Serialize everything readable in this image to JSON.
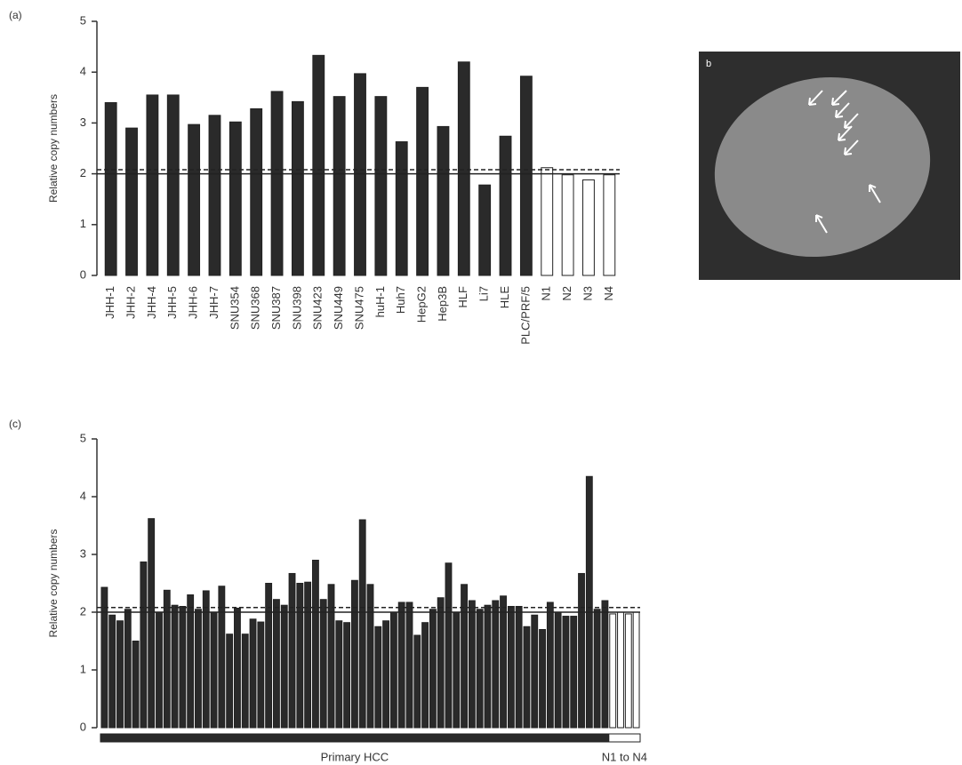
{
  "chart_data": [
    {
      "type": "bar",
      "panel_label": "(a)",
      "ylabel": "Relative copy numbers",
      "categories": [
        "JHH-1",
        "JHH-2",
        "JHH-4",
        "JHH-5",
        "JHH-6",
        "JHH-7",
        "SNU354",
        "SNU368",
        "SNU387",
        "SNU398",
        "SNU423",
        "SNU449",
        "SNU475",
        "huH-1",
        "Huh7",
        "HepG2",
        "Hep3B",
        "HLF",
        "Li7",
        "HLE",
        "PLC/PRF/5",
        "N1",
        "N2",
        "N3",
        "N4"
      ],
      "values": [
        3.4,
        2.9,
        3.55,
        3.55,
        2.97,
        3.15,
        3.02,
        3.28,
        3.62,
        3.42,
        4.33,
        3.52,
        3.97,
        3.52,
        2.63,
        3.7,
        2.93,
        4.2,
        1.78,
        2.74,
        3.92,
        2.12,
        1.98,
        1.88,
        1.98
      ],
      "colors": [
        "#2a2a2a",
        "#2a2a2a",
        "#2a2a2a",
        "#2a2a2a",
        "#2a2a2a",
        "#2a2a2a",
        "#2a2a2a",
        "#2a2a2a",
        "#2a2a2a",
        "#2a2a2a",
        "#2a2a2a",
        "#2a2a2a",
        "#2a2a2a",
        "#2a2a2a",
        "#2a2a2a",
        "#2a2a2a",
        "#2a2a2a",
        "#2a2a2a",
        "#2a2a2a",
        "#2a2a2a",
        "#2a2a2a",
        "#ffffff",
        "#ffffff",
        "#ffffff",
        "#ffffff"
      ],
      "edge_color": "#222222",
      "ylim": [
        0,
        5
      ],
      "yticks": [
        0,
        1,
        2,
        3,
        4,
        5
      ],
      "reference_lines": [
        {
          "value": 2,
          "style": "solid"
        },
        {
          "value": 2.08,
          "style": "dashed"
        }
      ]
    },
    {
      "type": "bar",
      "panel_label": "(c)",
      "ylabel": "Relative copy numbers",
      "values": [
        2.43,
        1.95,
        1.85,
        2.05,
        1.5,
        2.87,
        3.62,
        2.0,
        2.38,
        2.12,
        2.1,
        2.3,
        2.05,
        2.37,
        2.0,
        2.45,
        1.62,
        2.07,
        1.62,
        1.88,
        1.83,
        2.5,
        2.22,
        2.12,
        2.67,
        2.5,
        2.52,
        2.9,
        2.22,
        2.48,
        1.85,
        1.82,
        2.55,
        3.6,
        2.48,
        1.75,
        1.85,
        2.0,
        2.17,
        2.17,
        1.6,
        1.82,
        2.05,
        2.25,
        2.85,
        2.0,
        2.48,
        2.2,
        2.05,
        2.12,
        2.2,
        2.28,
        2.1,
        2.1,
        1.75,
        1.95,
        1.7,
        2.17,
        2.0,
        1.93,
        1.93,
        2.67,
        4.35,
        2.05,
        2.2,
        1.97,
        2.0,
        1.97,
        2.0
      ],
      "colors": [
        "#2a2a2a",
        "#2a2a2a",
        "#2a2a2a",
        "#2a2a2a",
        "#2a2a2a",
        "#2a2a2a",
        "#2a2a2a",
        "#2a2a2a",
        "#2a2a2a",
        "#2a2a2a",
        "#2a2a2a",
        "#2a2a2a",
        "#2a2a2a",
        "#2a2a2a",
        "#2a2a2a",
        "#2a2a2a",
        "#2a2a2a",
        "#2a2a2a",
        "#2a2a2a",
        "#2a2a2a",
        "#2a2a2a",
        "#2a2a2a",
        "#2a2a2a",
        "#2a2a2a",
        "#2a2a2a",
        "#2a2a2a",
        "#2a2a2a",
        "#2a2a2a",
        "#2a2a2a",
        "#2a2a2a",
        "#2a2a2a",
        "#2a2a2a",
        "#2a2a2a",
        "#2a2a2a",
        "#2a2a2a",
        "#2a2a2a",
        "#2a2a2a",
        "#2a2a2a",
        "#2a2a2a",
        "#2a2a2a",
        "#2a2a2a",
        "#2a2a2a",
        "#2a2a2a",
        "#2a2a2a",
        "#2a2a2a",
        "#2a2a2a",
        "#2a2a2a",
        "#2a2a2a",
        "#2a2a2a",
        "#2a2a2a",
        "#2a2a2a",
        "#2a2a2a",
        "#2a2a2a",
        "#2a2a2a",
        "#2a2a2a",
        "#2a2a2a",
        "#2a2a2a",
        "#2a2a2a",
        "#2a2a2a",
        "#2a2a2a",
        "#2a2a2a",
        "#2a2a2a",
        "#2a2a2a",
        "#2a2a2a",
        "#2a2a2a",
        "#ffffff",
        "#ffffff",
        "#ffffff",
        "#ffffff"
      ],
      "edge_color": "#222222",
      "ylim": [
        0,
        5
      ],
      "yticks": [
        0,
        1,
        2,
        3,
        4,
        5
      ],
      "reference_lines": [
        {
          "value": 2,
          "style": "solid"
        },
        {
          "value": 2.08,
          "style": "dashed"
        }
      ],
      "group_labels": [
        "Primary HCC",
        "N1 to N4"
      ]
    }
  ],
  "panel_b": {
    "label": "b"
  }
}
